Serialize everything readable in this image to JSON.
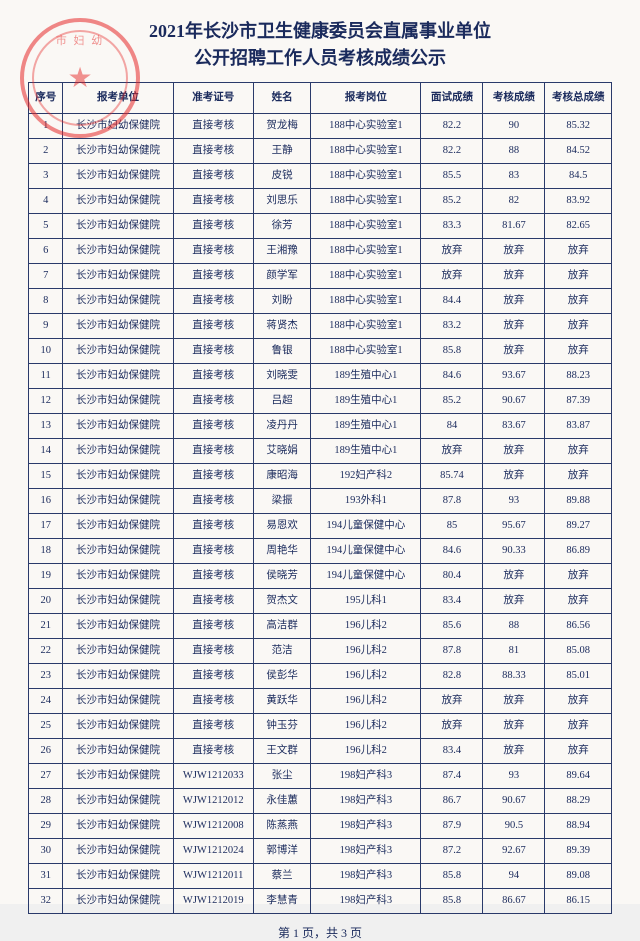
{
  "title_line1": "2021年长沙市卫生健康委员会直属事业单位",
  "title_line2": "公开招聘工作人员考核成绩公示",
  "headers": {
    "seq": "序号",
    "unit": "报考单位",
    "ticket": "准考证号",
    "name": "姓名",
    "post": "报考岗位",
    "interview": "面试成绩",
    "assess": "考核成绩",
    "total": "考核总成绩"
  },
  "footer": "第 1 页，共 3 页",
  "stamp_text": "市 妇 幼",
  "rows": [
    {
      "seq": "1",
      "unit": "长沙市妇幼保健院",
      "ticket": "直接考核",
      "name": "贺龙梅",
      "post": "188中心实验室1",
      "s1": "82.2",
      "s2": "90",
      "s3": "85.32"
    },
    {
      "seq": "2",
      "unit": "长沙市妇幼保健院",
      "ticket": "直接考核",
      "name": "王静",
      "post": "188中心实验室1",
      "s1": "82.2",
      "s2": "88",
      "s3": "84.52"
    },
    {
      "seq": "3",
      "unit": "长沙市妇幼保健院",
      "ticket": "直接考核",
      "name": "皮锐",
      "post": "188中心实验室1",
      "s1": "85.5",
      "s2": "83",
      "s3": "84.5"
    },
    {
      "seq": "4",
      "unit": "长沙市妇幼保健院",
      "ticket": "直接考核",
      "name": "刘思乐",
      "post": "188中心实验室1",
      "s1": "85.2",
      "s2": "82",
      "s3": "83.92"
    },
    {
      "seq": "5",
      "unit": "长沙市妇幼保健院",
      "ticket": "直接考核",
      "name": "徐芳",
      "post": "188中心实验室1",
      "s1": "83.3",
      "s2": "81.67",
      "s3": "82.65"
    },
    {
      "seq": "6",
      "unit": "长沙市妇幼保健院",
      "ticket": "直接考核",
      "name": "王湘豫",
      "post": "188中心实验室1",
      "s1": "放弃",
      "s2": "放弃",
      "s3": "放弃"
    },
    {
      "seq": "7",
      "unit": "长沙市妇幼保健院",
      "ticket": "直接考核",
      "name": "颜学军",
      "post": "188中心实验室1",
      "s1": "放弃",
      "s2": "放弃",
      "s3": "放弃"
    },
    {
      "seq": "8",
      "unit": "长沙市妇幼保健院",
      "ticket": "直接考核",
      "name": "刘盼",
      "post": "188中心实验室1",
      "s1": "84.4",
      "s2": "放弃",
      "s3": "放弃"
    },
    {
      "seq": "9",
      "unit": "长沙市妇幼保健院",
      "ticket": "直接考核",
      "name": "蒋贤杰",
      "post": "188中心实验室1",
      "s1": "83.2",
      "s2": "放弃",
      "s3": "放弃"
    },
    {
      "seq": "10",
      "unit": "长沙市妇幼保健院",
      "ticket": "直接考核",
      "name": "鲁银",
      "post": "188中心实验室1",
      "s1": "85.8",
      "s2": "放弃",
      "s3": "放弃"
    },
    {
      "seq": "11",
      "unit": "长沙市妇幼保健院",
      "ticket": "直接考核",
      "name": "刘晓雯",
      "post": "189生殖中心1",
      "s1": "84.6",
      "s2": "93.67",
      "s3": "88.23"
    },
    {
      "seq": "12",
      "unit": "长沙市妇幼保健院",
      "ticket": "直接考核",
      "name": "吕超",
      "post": "189生殖中心1",
      "s1": "85.2",
      "s2": "90.67",
      "s3": "87.39"
    },
    {
      "seq": "13",
      "unit": "长沙市妇幼保健院",
      "ticket": "直接考核",
      "name": "凌丹丹",
      "post": "189生殖中心1",
      "s1": "84",
      "s2": "83.67",
      "s3": "83.87"
    },
    {
      "seq": "14",
      "unit": "长沙市妇幼保健院",
      "ticket": "直接考核",
      "name": "艾晓娟",
      "post": "189生殖中心1",
      "s1": "放弃",
      "s2": "放弃",
      "s3": "放弃"
    },
    {
      "seq": "15",
      "unit": "长沙市妇幼保健院",
      "ticket": "直接考核",
      "name": "康昭海",
      "post": "192妇产科2",
      "s1": "85.74",
      "s2": "放弃",
      "s3": "放弃"
    },
    {
      "seq": "16",
      "unit": "长沙市妇幼保健院",
      "ticket": "直接考核",
      "name": "梁振",
      "post": "193外科1",
      "s1": "87.8",
      "s2": "93",
      "s3": "89.88"
    },
    {
      "seq": "17",
      "unit": "长沙市妇幼保健院",
      "ticket": "直接考核",
      "name": "易恩欢",
      "post": "194儿童保健中心",
      "s1": "85",
      "s2": "95.67",
      "s3": "89.27"
    },
    {
      "seq": "18",
      "unit": "长沙市妇幼保健院",
      "ticket": "直接考核",
      "name": "周艳华",
      "post": "194儿童保健中心",
      "s1": "84.6",
      "s2": "90.33",
      "s3": "86.89"
    },
    {
      "seq": "19",
      "unit": "长沙市妇幼保健院",
      "ticket": "直接考核",
      "name": "侯晓芳",
      "post": "194儿童保健中心",
      "s1": "80.4",
      "s2": "放弃",
      "s3": "放弃"
    },
    {
      "seq": "20",
      "unit": "长沙市妇幼保健院",
      "ticket": "直接考核",
      "name": "贺杰文",
      "post": "195儿科1",
      "s1": "83.4",
      "s2": "放弃",
      "s3": "放弃"
    },
    {
      "seq": "21",
      "unit": "长沙市妇幼保健院",
      "ticket": "直接考核",
      "name": "高洁群",
      "post": "196儿科2",
      "s1": "85.6",
      "s2": "88",
      "s3": "86.56"
    },
    {
      "seq": "22",
      "unit": "长沙市妇幼保健院",
      "ticket": "直接考核",
      "name": "范洁",
      "post": "196儿科2",
      "s1": "87.8",
      "s2": "81",
      "s3": "85.08"
    },
    {
      "seq": "23",
      "unit": "长沙市妇幼保健院",
      "ticket": "直接考核",
      "name": "侯彭华",
      "post": "196儿科2",
      "s1": "82.8",
      "s2": "88.33",
      "s3": "85.01"
    },
    {
      "seq": "24",
      "unit": "长沙市妇幼保健院",
      "ticket": "直接考核",
      "name": "黄跃华",
      "post": "196儿科2",
      "s1": "放弃",
      "s2": "放弃",
      "s3": "放弃"
    },
    {
      "seq": "25",
      "unit": "长沙市妇幼保健院",
      "ticket": "直接考核",
      "name": "钟玉芬",
      "post": "196儿科2",
      "s1": "放弃",
      "s2": "放弃",
      "s3": "放弃"
    },
    {
      "seq": "26",
      "unit": "长沙市妇幼保健院",
      "ticket": "直接考核",
      "name": "王文群",
      "post": "196儿科2",
      "s1": "83.4",
      "s2": "放弃",
      "s3": "放弃"
    },
    {
      "seq": "27",
      "unit": "长沙市妇幼保健院",
      "ticket": "WJW1212033",
      "name": "张尘",
      "post": "198妇产科3",
      "s1": "87.4",
      "s2": "93",
      "s3": "89.64"
    },
    {
      "seq": "28",
      "unit": "长沙市妇幼保健院",
      "ticket": "WJW1212012",
      "name": "永佳蕙",
      "post": "198妇产科3",
      "s1": "86.7",
      "s2": "90.67",
      "s3": "88.29"
    },
    {
      "seq": "29",
      "unit": "长沙市妇幼保健院",
      "ticket": "WJW1212008",
      "name": "陈蒸燕",
      "post": "198妇产科3",
      "s1": "87.9",
      "s2": "90.5",
      "s3": "88.94"
    },
    {
      "seq": "30",
      "unit": "长沙市妇幼保健院",
      "ticket": "WJW1212024",
      "name": "郭博洋",
      "post": "198妇产科3",
      "s1": "87.2",
      "s2": "92.67",
      "s3": "89.39"
    },
    {
      "seq": "31",
      "unit": "长沙市妇幼保健院",
      "ticket": "WJW1212011",
      "name": "蔡兰",
      "post": "198妇产科3",
      "s1": "85.8",
      "s2": "94",
      "s3": "89.08"
    },
    {
      "seq": "32",
      "unit": "长沙市妇幼保健院",
      "ticket": "WJW1212019",
      "name": "李慧青",
      "post": "198妇产科3",
      "s1": "85.8",
      "s2": "86.67",
      "s3": "86.15"
    }
  ]
}
